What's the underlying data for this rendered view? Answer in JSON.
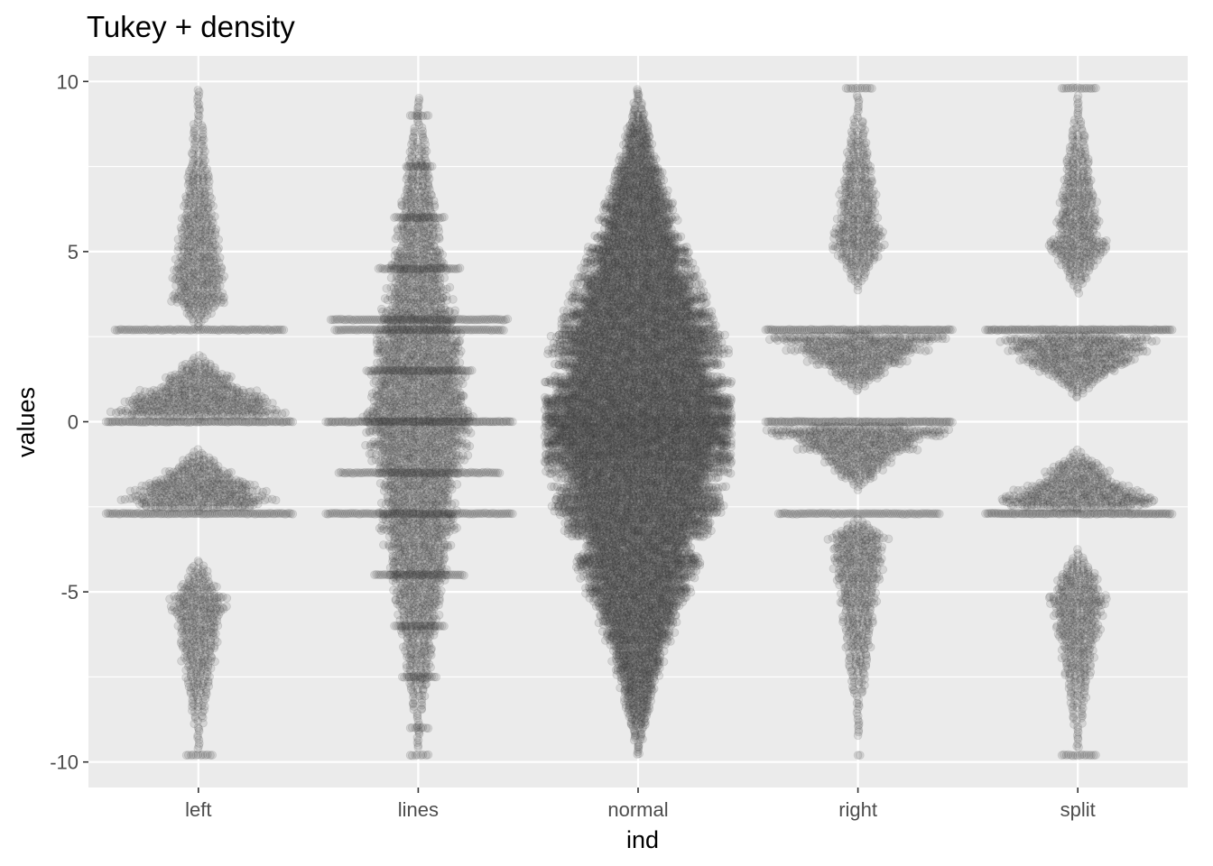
{
  "chart_data": {
    "type": "scatter",
    "subtype": "beeswarm",
    "title": "Tukey + density",
    "xlabel": "ind",
    "ylabel": "values",
    "ylim": [
      -10.75,
      10.75
    ],
    "yticks": [
      10,
      5,
      0,
      -5,
      -10
    ],
    "ytick_labels": [
      "10",
      "5",
      "0",
      "-5",
      "-10"
    ],
    "categories": [
      "left",
      "lines",
      "normal",
      "right",
      "split"
    ],
    "grid": true,
    "legend": "none",
    "colors": {
      "panel": "#ebebeb",
      "grid": "#ffffff",
      "point": "#303030",
      "point_opacity": 0.12,
      "tick_text": "#4d4d4d"
    },
    "series": [
      {
        "category": "left",
        "stacks": [
          {
            "y": 2.7,
            "count": 42
          },
          {
            "y": 0.0,
            "count": 55
          },
          {
            "y": -2.7,
            "count": 50
          },
          {
            "y": -9.8,
            "count": 6
          }
        ],
        "density_segments": [
          {
            "from": -9.6,
            "to": -4.0,
            "peak": -5.2,
            "max_count": 12
          },
          {
            "from": -2.6,
            "to": -0.8,
            "peak": -2.5,
            "max_count": 40
          },
          {
            "from": 0.1,
            "to": 2.0,
            "peak": 0.2,
            "max_count": 42
          },
          {
            "from": 2.8,
            "to": 9.8,
            "peak": 3.6,
            "max_count": 12
          }
        ]
      },
      {
        "category": "lines",
        "stacks": [
          {
            "y": 9.0,
            "count": 4
          },
          {
            "y": 7.5,
            "count": 6
          },
          {
            "y": 6.0,
            "count": 12
          },
          {
            "y": 4.5,
            "count": 20
          },
          {
            "y": 3.0,
            "count": 44
          },
          {
            "y": 2.7,
            "count": 42
          },
          {
            "y": 1.5,
            "count": 26
          },
          {
            "y": 0.0,
            "count": 56
          },
          {
            "y": -1.5,
            "count": 40
          },
          {
            "y": -2.7,
            "count": 48
          },
          {
            "y": -4.5,
            "count": 22
          },
          {
            "y": -6.0,
            "count": 12
          },
          {
            "y": -7.5,
            "count": 8
          },
          {
            "y": -9.0,
            "count": 4
          },
          {
            "y": -9.8,
            "count": 4
          }
        ],
        "density_segments": [
          {
            "from": -9.6,
            "to": 9.6,
            "peak": 0.0,
            "max_count": 24
          }
        ]
      },
      {
        "category": "normal",
        "stacks": [],
        "density_segments": [
          {
            "from": -9.8,
            "to": 9.8,
            "peak": 0.0,
            "max_count": 58
          }
        ]
      },
      {
        "category": "right",
        "stacks": [
          {
            "y": 9.8,
            "count": 6
          },
          {
            "y": 2.7,
            "count": 52
          },
          {
            "y": 0.0,
            "count": 56
          },
          {
            "y": -2.7,
            "count": 40
          },
          {
            "y": -9.8,
            "count": 1
          }
        ],
        "density_segments": [
          {
            "from": 3.9,
            "to": 9.6,
            "peak": 5.2,
            "max_count": 12
          },
          {
            "from": 0.9,
            "to": 2.6,
            "peak": 2.5,
            "max_count": 42
          },
          {
            "from": -2.0,
            "to": -0.1,
            "peak": -0.2,
            "max_count": 40
          },
          {
            "from": -9.2,
            "to": -2.8,
            "peak": -3.4,
            "max_count": 12
          }
        ]
      },
      {
        "category": "split",
        "stacks": [
          {
            "y": 9.8,
            "count": 8
          },
          {
            "y": 2.7,
            "count": 55
          },
          {
            "y": -2.7,
            "count": 55
          },
          {
            "y": -9.8,
            "count": 8
          }
        ],
        "density_segments": [
          {
            "from": 3.8,
            "to": 9.6,
            "peak": 5.0,
            "max_count": 12
          },
          {
            "from": 0.7,
            "to": 2.6,
            "peak": 2.5,
            "max_count": 42
          },
          {
            "from": -2.6,
            "to": -0.8,
            "peak": -2.5,
            "max_count": 40
          },
          {
            "from": -9.6,
            "to": -3.7,
            "peak": -5.0,
            "max_count": 12
          }
        ]
      }
    ]
  }
}
